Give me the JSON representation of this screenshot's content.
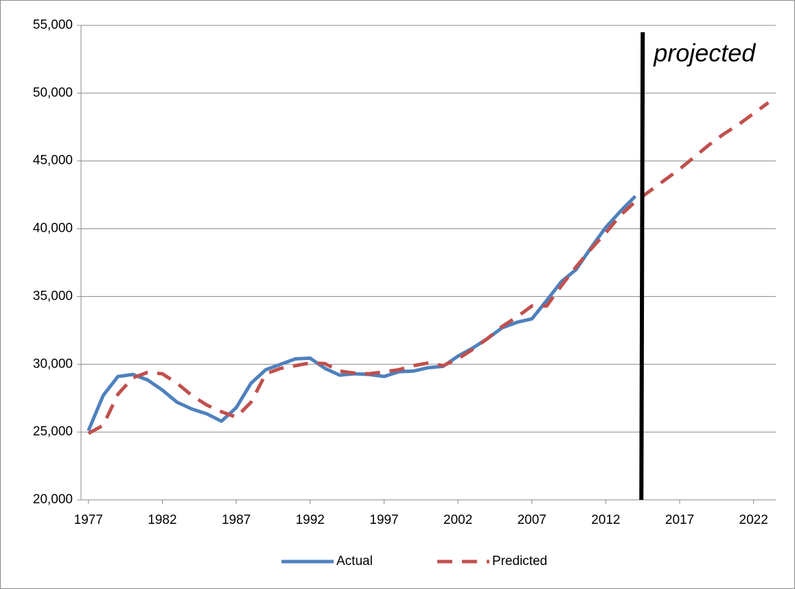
{
  "chart_data": {
    "type": "line",
    "x": [
      1977,
      1978,
      1979,
      1980,
      1981,
      1982,
      1983,
      1984,
      1985,
      1986,
      1987,
      1988,
      1989,
      1990,
      1991,
      1992,
      1993,
      1994,
      1995,
      1996,
      1997,
      1998,
      1999,
      2000,
      2001,
      2002,
      2003,
      2004,
      2005,
      2006,
      2007,
      2008,
      2009,
      2010,
      2011,
      2012,
      2013,
      2014,
      2015,
      2016,
      2017,
      2018,
      2019,
      2020,
      2021,
      2022,
      2023
    ],
    "series": [
      {
        "name": "Actual",
        "color": "#4f81bd",
        "dash": "solid",
        "values": [
          25100,
          27700,
          29100,
          29250,
          28850,
          28100,
          27200,
          26700,
          26350,
          25800,
          26800,
          28600,
          29600,
          30000,
          30400,
          30450,
          29700,
          29200,
          29300,
          29250,
          29100,
          29450,
          29500,
          29750,
          29850,
          30600,
          31200,
          31900,
          32700,
          33100,
          33350,
          34700,
          36100,
          37000,
          38600,
          40100,
          41300,
          42400,
          null,
          null,
          null,
          null,
          null,
          null,
          null,
          null,
          null
        ]
      },
      {
        "name": "Predicted",
        "color": "#c0504d",
        "dash": "dashed",
        "values": [
          24900,
          25500,
          27800,
          29000,
          29400,
          29300,
          28600,
          27700,
          27000,
          26500,
          26100,
          27200,
          29300,
          29700,
          29900,
          30100,
          30050,
          29500,
          29350,
          29300,
          29450,
          29600,
          29900,
          30100,
          29900,
          30400,
          31100,
          31900,
          32800,
          33500,
          34300,
          34300,
          35800,
          37200,
          38500,
          39700,
          41000,
          42000,
          42800,
          43600,
          44400,
          45300,
          46200,
          47000,
          47700,
          48500,
          49300
        ]
      }
    ],
    "xlim": [
      1976.5,
      2023.5
    ],
    "xticks": [
      1977,
      1982,
      1987,
      1992,
      1997,
      2002,
      2007,
      2012,
      2017,
      2022
    ],
    "ylim": [
      20000,
      55000
    ],
    "yticks": [
      {
        "value": 20000,
        "label": "20,000"
      },
      {
        "value": 25000,
        "label": "25,000"
      },
      {
        "value": 30000,
        "label": "30,000"
      },
      {
        "value": 35000,
        "label": "35,000"
      },
      {
        "value": 40000,
        "label": "40,000"
      },
      {
        "value": 45000,
        "label": "45,000"
      },
      {
        "value": 50000,
        "label": "50,000"
      },
      {
        "value": 55000,
        "label": "55,000"
      }
    ],
    "grid": true,
    "legend": "bottom",
    "annotation": {
      "text": "projected",
      "x": 2014.5
    }
  }
}
